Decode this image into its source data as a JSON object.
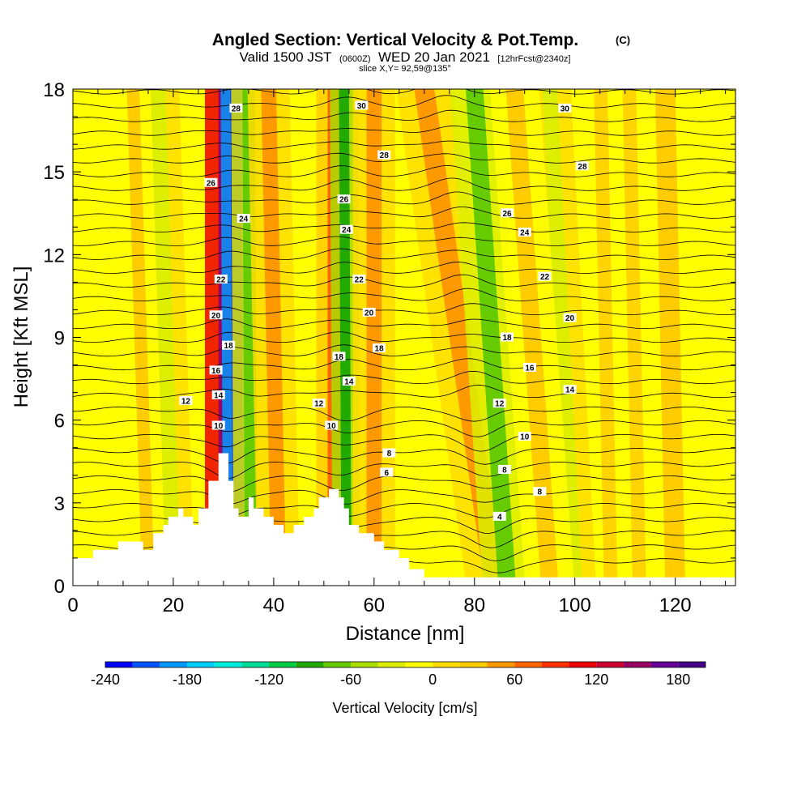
{
  "chart_data": {
    "type": "cross-section",
    "title": {
      "main": "Angled Section: Vertical Velocity & Pot.Temp.",
      "mark": "(C)"
    },
    "subtitle": {
      "part1": "Valid 1500 JST",
      "part2": "(0600Z)",
      "part3": "WED 20 Jan 2021",
      "part4": "[12hrFcst@2340z]"
    },
    "slice_text": "slice X,Y= 92,59@135°",
    "xlabel": "Distance [nm]",
    "ylabel": "Height [Kft MSL]",
    "xlim": [
      0,
      132
    ],
    "ylim": [
      0,
      18
    ],
    "x_ticks": [
      0,
      20,
      40,
      60,
      80,
      100,
      120
    ],
    "x_tick_labels": [
      "0",
      "20",
      "40",
      "60",
      "80",
      "100",
      "120"
    ],
    "y_ticks": [
      0,
      3,
      6,
      9,
      12,
      15,
      18
    ],
    "y_tick_labels": [
      "0",
      "3",
      "6",
      "9",
      "12",
      "15",
      "18"
    ],
    "terrain": [
      [
        0,
        1.0
      ],
      [
        4,
        1.0
      ],
      [
        4,
        1.3
      ],
      [
        9,
        1.3
      ],
      [
        9,
        1.6
      ],
      [
        14,
        1.6
      ],
      [
        14,
        1.3
      ],
      [
        16,
        1.3
      ],
      [
        16,
        1.9
      ],
      [
        18,
        1.9
      ],
      [
        18,
        2.2
      ],
      [
        19,
        2.2
      ],
      [
        19,
        2.5
      ],
      [
        21,
        2.5
      ],
      [
        21,
        2.8
      ],
      [
        22,
        2.8
      ],
      [
        22,
        2.5
      ],
      [
        24,
        2.5
      ],
      [
        24,
        2.2
      ],
      [
        25,
        2.2
      ],
      [
        25,
        2.8
      ],
      [
        27,
        2.8
      ],
      [
        27,
        3.8
      ],
      [
        29,
        3.8
      ],
      [
        29,
        4.8
      ],
      [
        31,
        4.8
      ],
      [
        31,
        3.8
      ],
      [
        32,
        3.8
      ],
      [
        32,
        2.8
      ],
      [
        33,
        2.8
      ],
      [
        33,
        2.5
      ],
      [
        35,
        2.5
      ],
      [
        35,
        3.2
      ],
      [
        36,
        3.2
      ],
      [
        36,
        2.8
      ],
      [
        38,
        2.8
      ],
      [
        38,
        2.5
      ],
      [
        40,
        2.5
      ],
      [
        40,
        2.2
      ],
      [
        42,
        2.2
      ],
      [
        42,
        1.9
      ],
      [
        44,
        1.9
      ],
      [
        44,
        2.2
      ],
      [
        46,
        2.2
      ],
      [
        46,
        2.5
      ],
      [
        48,
        2.5
      ],
      [
        48,
        2.8
      ],
      [
        49,
        2.8
      ],
      [
        49,
        3.2
      ],
      [
        51,
        3.2
      ],
      [
        51,
        3.5
      ],
      [
        53,
        3.5
      ],
      [
        53,
        3.2
      ],
      [
        54,
        3.2
      ],
      [
        54,
        2.8
      ],
      [
        55,
        2.8
      ],
      [
        55,
        2.2
      ],
      [
        57,
        2.2
      ],
      [
        57,
        1.9
      ],
      [
        60,
        1.9
      ],
      [
        60,
        1.6
      ],
      [
        62,
        1.6
      ],
      [
        62,
        1.3
      ],
      [
        65,
        1.3
      ],
      [
        65,
        1.0
      ],
      [
        67,
        1.0
      ],
      [
        67,
        0.6
      ],
      [
        70,
        0.6
      ],
      [
        70,
        0.3
      ],
      [
        132,
        0.3
      ]
    ],
    "colorbar": {
      "label": "Vertical Velocity [cm/s]",
      "min": -240,
      "max": 200,
      "step": 20,
      "tick_values": [
        -240,
        -180,
        -120,
        -60,
        0,
        60,
        120,
        180
      ],
      "tick_labels": [
        "-240",
        "-180",
        "-120",
        "-60",
        "0",
        "60",
        "120",
        "180"
      ],
      "colors": [
        "#0000ff",
        "#0055ff",
        "#0099ff",
        "#00ccff",
        "#00eedd",
        "#00dd99",
        "#00cc44",
        "#22aa00",
        "#66cc00",
        "#aadd00",
        "#ddee00",
        "#ffff00",
        "#ffdd00",
        "#ffcc00",
        "#ff9900",
        "#ff6600",
        "#ff3300",
        "#ee0000",
        "#cc0033",
        "#990066",
        "#660099",
        "#440088"
      ]
    },
    "velocity_bands": [
      {
        "x_base": 30.5,
        "x_top": 30.5,
        "width": 3.0,
        "value": 140
      },
      {
        "x_base": 33.0,
        "x_top": 32.5,
        "width": 2.2,
        "value": -230
      },
      {
        "x_base": 35.5,
        "x_top": 35.0,
        "width": 2.5,
        "value": -80
      },
      {
        "x_base": 41.0,
        "x_top": 39.0,
        "width": 3.0,
        "value": 40
      },
      {
        "x_base": 52.0,
        "x_top": 52.0,
        "width": 2.5,
        "value": 60
      },
      {
        "x_base": 54.5,
        "x_top": 54.0,
        "width": 2.0,
        "value": -90
      },
      {
        "x_base": 60.0,
        "x_top": 60.0,
        "width": 3.0,
        "value": 40
      },
      {
        "x_base": 84.0,
        "x_top": 70.0,
        "width": 4.0,
        "value": 50
      },
      {
        "x_base": 86.5,
        "x_top": 80.0,
        "width": 3.5,
        "value": -70
      },
      {
        "x_base": 100.0,
        "x_top": 95.0,
        "width": 3.0,
        "value": -40
      },
      {
        "x_base": 95.0,
        "x_top": 88.0,
        "width": 3.5,
        "value": 30
      },
      {
        "x_base": 20.0,
        "x_top": 17.0,
        "width": 3.0,
        "value": -30
      },
      {
        "x_base": 15.0,
        "x_top": 12.0,
        "width": 2.5,
        "value": 20
      },
      {
        "x_base": 120.0,
        "x_top": 118.0,
        "width": 4.0,
        "value": 20
      },
      {
        "x_base": 110.0,
        "x_top": 108.0,
        "width": 3.0,
        "value": -20
      }
    ],
    "theta_contour_labels": [
      {
        "x": 32.5,
        "y": 17.3,
        "text": "28"
      },
      {
        "x": 57.5,
        "y": 17.4,
        "text": "30"
      },
      {
        "x": 98.0,
        "y": 17.3,
        "text": "30"
      },
      {
        "x": 62.0,
        "y": 15.6,
        "text": "28"
      },
      {
        "x": 101.5,
        "y": 15.2,
        "text": "28"
      },
      {
        "x": 27.5,
        "y": 14.6,
        "text": "26"
      },
      {
        "x": 54.0,
        "y": 14.0,
        "text": "26"
      },
      {
        "x": 86.5,
        "y": 13.5,
        "text": "26"
      },
      {
        "x": 34.0,
        "y": 13.3,
        "text": "24"
      },
      {
        "x": 54.5,
        "y": 12.9,
        "text": "24"
      },
      {
        "x": 90.0,
        "y": 12.8,
        "text": "24"
      },
      {
        "x": 29.5,
        "y": 11.1,
        "text": "22"
      },
      {
        "x": 57.0,
        "y": 11.1,
        "text": "22"
      },
      {
        "x": 94.0,
        "y": 11.2,
        "text": "22"
      },
      {
        "x": 28.5,
        "y": 9.8,
        "text": "20"
      },
      {
        "x": 59.0,
        "y": 9.9,
        "text": "20"
      },
      {
        "x": 99.0,
        "y": 9.7,
        "text": "20"
      },
      {
        "x": 31.0,
        "y": 8.7,
        "text": "18"
      },
      {
        "x": 61.0,
        "y": 8.6,
        "text": "18"
      },
      {
        "x": 86.5,
        "y": 9.0,
        "text": "18"
      },
      {
        "x": 53.0,
        "y": 8.3,
        "text": "18"
      },
      {
        "x": 28.5,
        "y": 7.8,
        "text": "16"
      },
      {
        "x": 91.0,
        "y": 7.9,
        "text": "16"
      },
      {
        "x": 55.0,
        "y": 7.4,
        "text": "14"
      },
      {
        "x": 29.0,
        "y": 6.9,
        "text": "14"
      },
      {
        "x": 99.0,
        "y": 7.1,
        "text": "14"
      },
      {
        "x": 22.5,
        "y": 6.7,
        "text": "12"
      },
      {
        "x": 49.0,
        "y": 6.6,
        "text": "12"
      },
      {
        "x": 85.0,
        "y": 6.6,
        "text": "12"
      },
      {
        "x": 29.0,
        "y": 5.8,
        "text": "10"
      },
      {
        "x": 51.5,
        "y": 5.8,
        "text": "10"
      },
      {
        "x": 90.0,
        "y": 5.4,
        "text": "10"
      },
      {
        "x": 63.0,
        "y": 4.8,
        "text": "8"
      },
      {
        "x": 86.0,
        "y": 4.2,
        "text": "8"
      },
      {
        "x": 93.0,
        "y": 3.4,
        "text": "8"
      },
      {
        "x": 62.5,
        "y": 4.1,
        "text": "6"
      },
      {
        "x": 85.0,
        "y": 2.5,
        "text": "4"
      }
    ]
  }
}
